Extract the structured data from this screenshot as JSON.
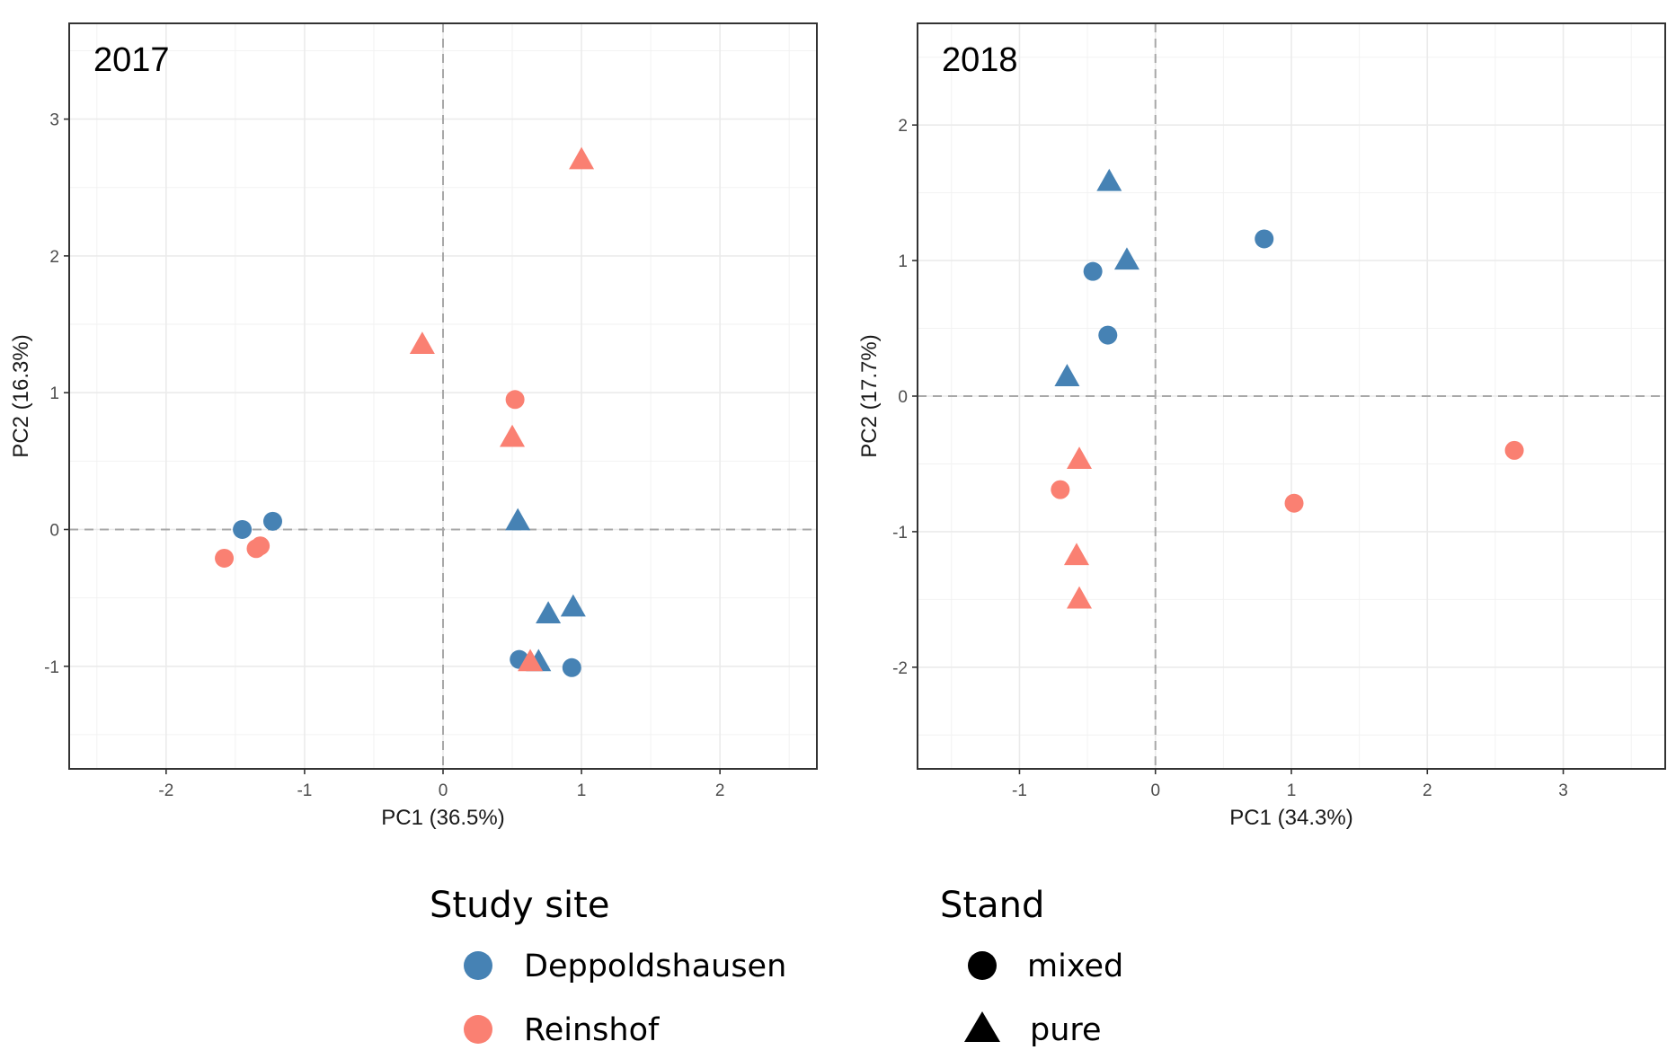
{
  "colors": {
    "Deppoldshausen": "#4682b4",
    "Reinshof": "#fa8072",
    "shape_key": "#000000"
  },
  "chart_data": [
    {
      "type": "scatter",
      "title": "2017",
      "xlabel": "PC1 (36.5%)",
      "ylabel": "PC2 (16.3%)",
      "xlim": [
        -2.7,
        2.7
      ],
      "ylim": [
        -1.75,
        3.7
      ],
      "xticks": [
        -2,
        -1,
        0,
        1,
        2
      ],
      "yticks": [
        -1,
        0,
        1,
        2,
        3
      ],
      "reference_lines": {
        "x": 0,
        "y": 0
      },
      "grid": true,
      "points": [
        {
          "site": "Reinshof",
          "stand": "pure",
          "x": 1.0,
          "y": 2.7
        },
        {
          "site": "Reinshof",
          "stand": "pure",
          "x": -0.15,
          "y": 1.35
        },
        {
          "site": "Reinshof",
          "stand": "mixed",
          "x": 0.52,
          "y": 0.95
        },
        {
          "site": "Reinshof",
          "stand": "pure",
          "x": 0.5,
          "y": 0.67
        },
        {
          "site": "Deppoldshausen",
          "stand": "pure",
          "x": 0.54,
          "y": 0.06
        },
        {
          "site": "Deppoldshausen",
          "stand": "mixed",
          "x": -1.45,
          "y": 0.0
        },
        {
          "site": "Deppoldshausen",
          "stand": "mixed",
          "x": -1.23,
          "y": 0.06
        },
        {
          "site": "Reinshof",
          "stand": "mixed",
          "x": -1.58,
          "y": -0.21
        },
        {
          "site": "Reinshof",
          "stand": "mixed",
          "x": -1.32,
          "y": -0.12
        },
        {
          "site": "Reinshof",
          "stand": "mixed",
          "x": -1.35,
          "y": -0.14
        },
        {
          "site": "Deppoldshausen",
          "stand": "pure",
          "x": 0.94,
          "y": -0.57
        },
        {
          "site": "Deppoldshausen",
          "stand": "pure",
          "x": 0.76,
          "y": -0.62
        },
        {
          "site": "Deppoldshausen",
          "stand": "mixed",
          "x": 0.55,
          "y": -0.95
        },
        {
          "site": "Deppoldshausen",
          "stand": "pure",
          "x": 0.69,
          "y": -0.97
        },
        {
          "site": "Reinshof",
          "stand": "pure",
          "x": 0.63,
          "y": -0.97
        },
        {
          "site": "Deppoldshausen",
          "stand": "mixed",
          "x": 0.93,
          "y": -1.01
        }
      ]
    },
    {
      "type": "scatter",
      "title": "2018",
      "xlabel": "PC1 (34.3%)",
      "ylabel": "PC2 (17.7%)",
      "xlim": [
        -1.75,
        3.75
      ],
      "ylim": [
        -2.75,
        2.75
      ],
      "xticks": [
        -1,
        0,
        1,
        2,
        3
      ],
      "yticks": [
        -2,
        -1,
        0,
        1,
        2
      ],
      "reference_lines": {
        "x": 0,
        "y": 0
      },
      "grid": true,
      "points": [
        {
          "site": "Deppoldshausen",
          "stand": "pure",
          "x": -0.34,
          "y": 1.58
        },
        {
          "site": "Deppoldshausen",
          "stand": "mixed",
          "x": 0.8,
          "y": 1.16
        },
        {
          "site": "Deppoldshausen",
          "stand": "pure",
          "x": -0.21,
          "y": 1.0
        },
        {
          "site": "Deppoldshausen",
          "stand": "mixed",
          "x": -0.46,
          "y": 0.92
        },
        {
          "site": "Deppoldshausen",
          "stand": "mixed",
          "x": -0.35,
          "y": 0.45
        },
        {
          "site": "Deppoldshausen",
          "stand": "pure",
          "x": -0.65,
          "y": 0.14
        },
        {
          "site": "Reinshof",
          "stand": "pure",
          "x": -0.56,
          "y": -0.47
        },
        {
          "site": "Reinshof",
          "stand": "mixed",
          "x": -0.7,
          "y": -0.69
        },
        {
          "site": "Reinshof",
          "stand": "mixed",
          "x": 1.02,
          "y": -0.79
        },
        {
          "site": "Reinshof",
          "stand": "mixed",
          "x": 2.64,
          "y": -0.4
        },
        {
          "site": "Reinshof",
          "stand": "pure",
          "x": -0.58,
          "y": -1.18
        },
        {
          "site": "Reinshof",
          "stand": "pure",
          "x": -0.56,
          "y": -1.5
        }
      ]
    }
  ],
  "legend": {
    "site": {
      "title": "Study site",
      "items": [
        {
          "label": "Deppoldshausen",
          "color": "#4682b4"
        },
        {
          "label": "Reinshof",
          "color": "#fa8072"
        }
      ]
    },
    "stand": {
      "title": "Stand",
      "items": [
        {
          "label": "mixed",
          "shape": "circle"
        },
        {
          "label": "pure",
          "shape": "triangle"
        }
      ]
    }
  }
}
